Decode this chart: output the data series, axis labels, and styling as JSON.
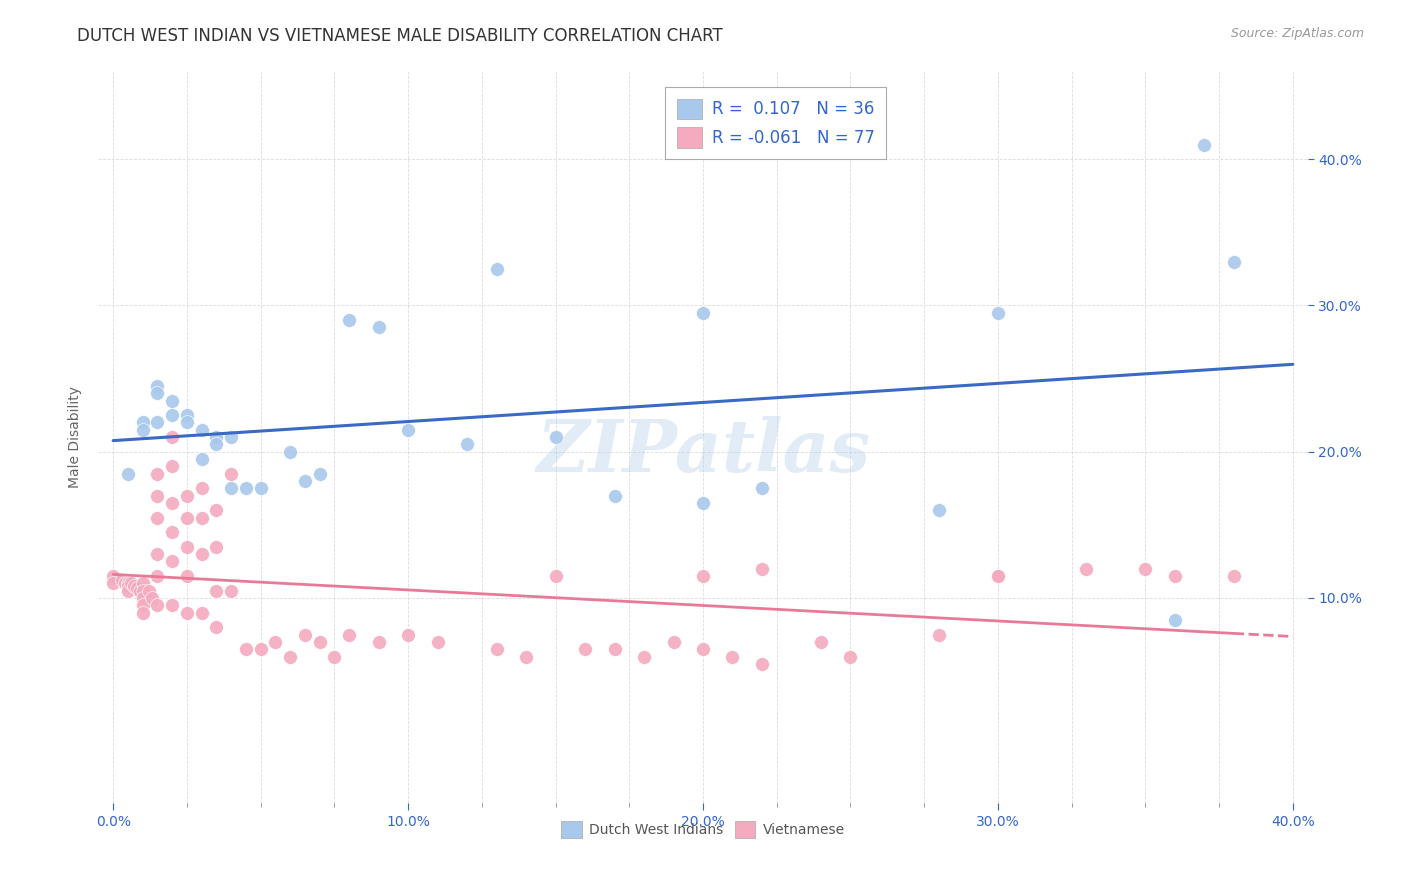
{
  "title": "DUTCH WEST INDIAN VS VIETNAMESE MALE DISABILITY CORRELATION CHART",
  "source": "Source: ZipAtlas.com",
  "ylabel": "Male Disability",
  "legend_label1": "Dutch West Indians",
  "legend_label2": "Vietnamese",
  "r1": 0.107,
  "n1": 36,
  "r2": -0.061,
  "n2": 77,
  "color_blue": "#A8C8EC",
  "color_pink": "#F4AABF",
  "line_color_blue": "#3B6AC4",
  "line_color_pink": "#E87A98",
  "background_color": "#FFFFFF",
  "grid_color": "#CCCCCC",
  "xlim": [
    -0.005,
    0.405
  ],
  "ylim": [
    -0.04,
    0.46
  ],
  "xticks": [
    0.0,
    0.1,
    0.2,
    0.3,
    0.4
  ],
  "xticklabels": [
    "0.0%",
    "10.0%",
    "20.0%",
    "30.0%",
    "40.0%"
  ],
  "yticks_right": [
    0.1,
    0.2,
    0.3,
    0.4
  ],
  "yticklabels_right": [
    "10.0%",
    "20.0%",
    "30.0%",
    "40.0%"
  ],
  "blue_x": [
    0.005,
    0.01,
    0.01,
    0.015,
    0.015,
    0.015,
    0.02,
    0.02,
    0.025,
    0.025,
    0.03,
    0.03,
    0.035,
    0.035,
    0.04,
    0.04,
    0.045,
    0.05,
    0.06,
    0.065,
    0.07,
    0.08,
    0.09,
    0.1,
    0.12,
    0.15,
    0.17,
    0.2,
    0.22,
    0.28,
    0.3,
    0.36,
    0.37,
    0.38,
    0.2,
    0.13
  ],
  "blue_y": [
    0.185,
    0.22,
    0.215,
    0.245,
    0.24,
    0.22,
    0.235,
    0.225,
    0.225,
    0.22,
    0.215,
    0.195,
    0.21,
    0.205,
    0.21,
    0.175,
    0.175,
    0.175,
    0.2,
    0.18,
    0.185,
    0.29,
    0.285,
    0.215,
    0.205,
    0.21,
    0.17,
    0.165,
    0.175,
    0.16,
    0.295,
    0.085,
    0.41,
    0.33,
    0.295,
    0.325
  ],
  "pink_x": [
    0.0,
    0.0,
    0.003,
    0.004,
    0.005,
    0.005,
    0.005,
    0.006,
    0.007,
    0.008,
    0.009,
    0.01,
    0.01,
    0.01,
    0.01,
    0.01,
    0.012,
    0.013,
    0.015,
    0.015,
    0.015,
    0.015,
    0.015,
    0.015,
    0.02,
    0.02,
    0.02,
    0.02,
    0.02,
    0.02,
    0.025,
    0.025,
    0.025,
    0.025,
    0.025,
    0.03,
    0.03,
    0.03,
    0.03,
    0.035,
    0.035,
    0.035,
    0.035,
    0.04,
    0.04,
    0.045,
    0.05,
    0.055,
    0.06,
    0.065,
    0.07,
    0.075,
    0.08,
    0.09,
    0.1,
    0.11,
    0.13,
    0.14,
    0.15,
    0.16,
    0.17,
    0.18,
    0.19,
    0.2,
    0.21,
    0.22,
    0.24,
    0.25,
    0.28,
    0.3,
    0.3,
    0.33,
    0.35,
    0.36,
    0.38,
    0.2,
    0.22
  ],
  "pink_y": [
    0.115,
    0.11,
    0.112,
    0.11,
    0.11,
    0.108,
    0.105,
    0.11,
    0.108,
    0.107,
    0.105,
    0.11,
    0.105,
    0.1,
    0.095,
    0.09,
    0.105,
    0.1,
    0.185,
    0.17,
    0.155,
    0.13,
    0.115,
    0.095,
    0.21,
    0.19,
    0.165,
    0.145,
    0.125,
    0.095,
    0.17,
    0.155,
    0.135,
    0.115,
    0.09,
    0.175,
    0.155,
    0.13,
    0.09,
    0.16,
    0.135,
    0.105,
    0.08,
    0.185,
    0.105,
    0.065,
    0.065,
    0.07,
    0.06,
    0.075,
    0.07,
    0.06,
    0.075,
    0.07,
    0.075,
    0.07,
    0.065,
    0.06,
    0.115,
    0.065,
    0.065,
    0.06,
    0.07,
    0.065,
    0.06,
    0.055,
    0.07,
    0.06,
    0.075,
    0.115,
    0.115,
    0.12,
    0.12,
    0.115,
    0.115,
    0.115,
    0.12
  ],
  "watermark_text": "ZIPatlas",
  "title_fontsize": 12,
  "axis_label_fontsize": 10,
  "tick_fontsize": 10,
  "legend_fontsize": 12
}
